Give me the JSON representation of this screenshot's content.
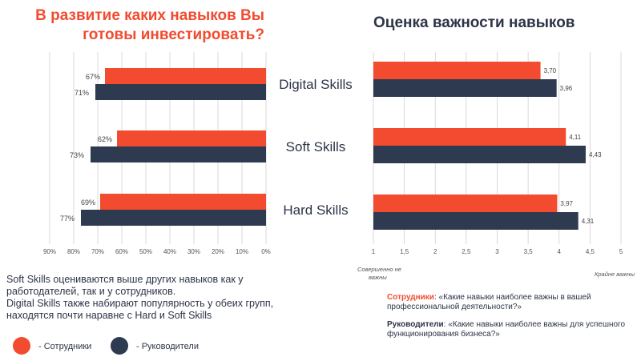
{
  "colors": {
    "employees": "#f24b2f",
    "managers": "#2d3a4f",
    "axis": "#cfcfcf",
    "text": "#2d3447"
  },
  "left_title": "В развитие каких навыков Вы\nготовы инвестировать?",
  "right_title": "Оценка важности навыков",
  "summary": {
    "line1": "Soft Skills оцениваются выше других навыков как у работодателей, так и у сотрудников.",
    "line2": "Digital Skills также набирают популярность у обеих групп, находятся почти наравне с Hard и Soft Skills"
  },
  "legend": {
    "employees": "- Сотрудники",
    "managers": "- Руководители"
  },
  "questions": {
    "employees_who": "Сотрудники",
    "employees_text": ": «Какие навыки наиболее важны в вашей профессиональной деятельности?»",
    "managers_who": "Руководители",
    "managers_text": ": «Какие навыки наиболее важны для успешного функционирования бизнеса?»"
  },
  "chart_data": [
    {
      "type": "bar",
      "orientation": "horizontal-reversed",
      "title": "В развитие каких навыков Вы готовы инвестировать?",
      "categories": [
        "Digital Skills",
        "Soft Skills",
        "Hard Skills"
      ],
      "series": [
        {
          "name": "Сотрудники",
          "values": [
            67,
            62,
            69
          ],
          "labels": [
            "67%",
            "62%",
            "69%"
          ]
        },
        {
          "name": "Руководители",
          "values": [
            71,
            73,
            77
          ],
          "labels": [
            "71%",
            "73%",
            "77%"
          ]
        }
      ],
      "x_ticks": [
        "90%",
        "80%",
        "70%",
        "60%",
        "50%",
        "40%",
        "30%",
        "20%",
        "10%",
        "0%"
      ],
      "xlim": [
        0,
        90
      ],
      "grid": true
    },
    {
      "type": "bar",
      "orientation": "horizontal",
      "title": "Оценка важности навыков",
      "categories": [
        "Digital Skills",
        "Soft Skills",
        "Hard Skills"
      ],
      "series": [
        {
          "name": "Сотрудники",
          "values": [
            3.7,
            4.11,
            3.97
          ],
          "labels": [
            "3,70",
            "4,11",
            "3,97"
          ]
        },
        {
          "name": "Руководители",
          "values": [
            3.96,
            4.43,
            4.31
          ],
          "labels": [
            "3,96",
            "4,43",
            "4,31"
          ]
        }
      ],
      "x_ticks": [
        "1",
        "1,5",
        "2",
        "2,5",
        "3",
        "3,5",
        "4",
        "4,5",
        "5"
      ],
      "xlim": [
        1,
        5
      ],
      "scale_min_label": "Совершенно не важны",
      "scale_max_label": "Крайне важны",
      "grid": true
    }
  ]
}
